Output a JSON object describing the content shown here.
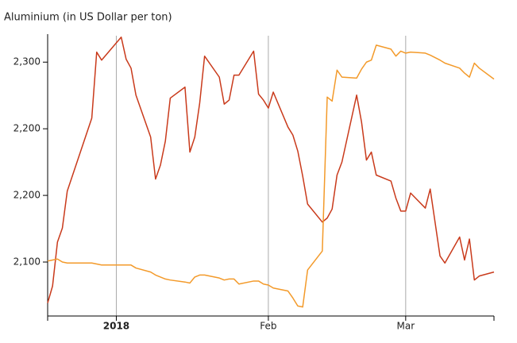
{
  "chart_data": {
    "type": "line",
    "title": "Aluminium (in US Dollar per ton)",
    "x": [
      0,
      1,
      2,
      3,
      4,
      9,
      10,
      11,
      15,
      16,
      17,
      18,
      21,
      22,
      23,
      24,
      25,
      28,
      29,
      30,
      31,
      32,
      35,
      36,
      37,
      38,
      39,
      42,
      43,
      44,
      45,
      46,
      49,
      50,
      51,
      52,
      53,
      56,
      57,
      58,
      59,
      60,
      63,
      64,
      65,
      66,
      67,
      70,
      71,
      72,
      73,
      74,
      77,
      78,
      80,
      81,
      84,
      85,
      86,
      87,
      88,
      91
    ],
    "series": [
      {
        "color": "#c93a1b",
        "values": [
          2059,
          2076,
          2120,
          2134,
          2171,
          2244,
          2310,
          2302,
          2325,
          2303,
          2294,
          2267,
          2225,
          2183,
          2197,
          2221,
          2264,
          2275,
          2210,
          2225,
          2259,
          2306,
          2285,
          2258,
          2262,
          2287,
          2287,
          2311,
          2268,
          2262,
          2254,
          2270,
          2235,
          2227,
          2211,
          2186,
          2158,
          2140,
          2144,
          2153,
          2187,
          2200,
          2267,
          2240,
          2202,
          2210,
          2187,
          2181,
          2164,
          2151,
          2151,
          2169,
          2154,
          2173,
          2106,
          2099,
          2125,
          2102,
          2123,
          2082,
          2086,
          2090
        ]
      },
      {
        "color": "#f39a2a",
        "values": [
          2101,
          2102,
          2103,
          2100,
          2099,
          2099,
          2098,
          2097,
          2097,
          2097,
          2097,
          2094,
          2090,
          2087,
          2085,
          2083,
          2082,
          2080,
          2079,
          2085,
          2087,
          2087,
          2084,
          2082,
          2083,
          2083,
          2078,
          2081,
          2081,
          2078,
          2077,
          2074,
          2071,
          2064,
          2056,
          2055,
          2092,
          2111,
          2265,
          2261,
          2292,
          2285,
          2284,
          2293,
          2300,
          2302,
          2317,
          2313,
          2306,
          2311,
          2309,
          2310,
          2309,
          2307,
          2302,
          2299,
          2294,
          2289,
          2285,
          2299,
          2294,
          2283
        ]
      }
    ],
    "xlim": [
      0,
      91
    ],
    "xticks": [
      {
        "value": 14,
        "label": "2018"
      },
      {
        "value": 45,
        "label": "Feb"
      },
      {
        "value": 73,
        "label": "Mar"
      }
    ],
    "ylim": [
      2046,
      2328
    ],
    "yticks": [
      {
        "value": 2100,
        "label": "2,100"
      },
      {
        "value": 2166.67,
        "label": "2,200"
      },
      {
        "value": 2233.33,
        "label": "2,200"
      },
      {
        "value": 2300,
        "label": "2,300"
      }
    ],
    "grid": "x"
  }
}
